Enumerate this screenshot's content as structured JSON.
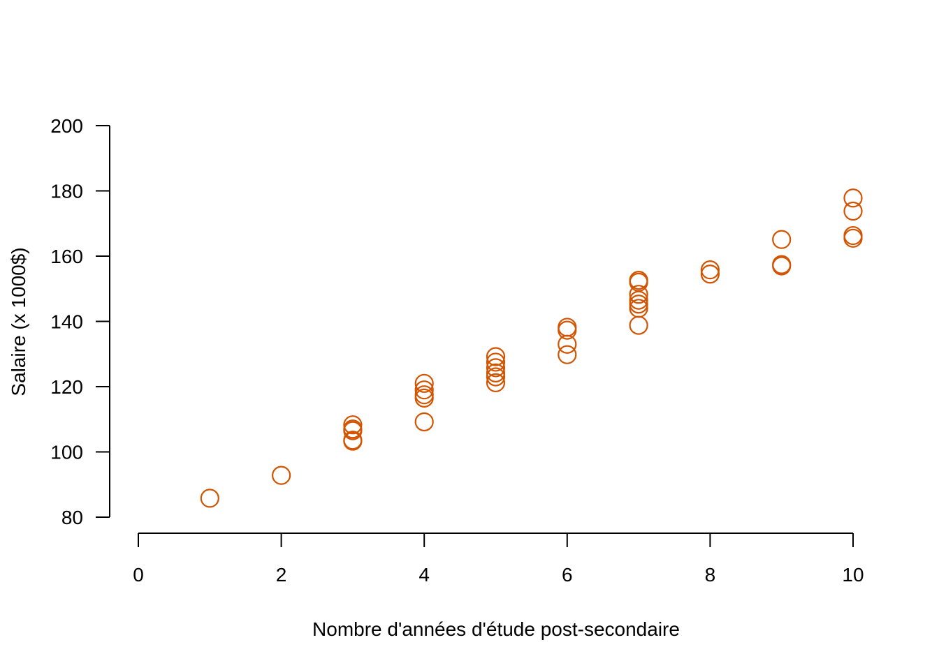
{
  "chart_data": {
    "type": "scatter",
    "xlabel": "Nombre d'années d'étude post-secondaire",
    "ylabel": "Salaire (x 1000$)",
    "xlim": [
      0,
      10
    ],
    "ylim": [
      80,
      200
    ],
    "x_ticks": [
      "0",
      "2",
      "4",
      "6",
      "8",
      "10"
    ],
    "y_ticks": [
      "80",
      "100",
      "120",
      "140",
      "160",
      "180",
      "200"
    ],
    "grid": false,
    "marker": "open-circle",
    "color": "#D35400",
    "points": [
      {
        "x": 1,
        "y": 85.8
      },
      {
        "x": 2,
        "y": 92.8
      },
      {
        "x": 3,
        "y": 103.3
      },
      {
        "x": 3,
        "y": 103.6
      },
      {
        "x": 3,
        "y": 106.5
      },
      {
        "x": 3,
        "y": 107.0
      },
      {
        "x": 3,
        "y": 108.3
      },
      {
        "x": 4,
        "y": 109.2
      },
      {
        "x": 4,
        "y": 116.5
      },
      {
        "x": 4,
        "y": 117.5
      },
      {
        "x": 4,
        "y": 119.0
      },
      {
        "x": 4,
        "y": 121.0
      },
      {
        "x": 5,
        "y": 121.2
      },
      {
        "x": 5,
        "y": 123.0
      },
      {
        "x": 5,
        "y": 124.2
      },
      {
        "x": 5,
        "y": 125.8
      },
      {
        "x": 5,
        "y": 127.5
      },
      {
        "x": 5,
        "y": 129.2
      },
      {
        "x": 6,
        "y": 129.8
      },
      {
        "x": 6,
        "y": 133.0
      },
      {
        "x": 6,
        "y": 137.3
      },
      {
        "x": 6,
        "y": 138.2
      },
      {
        "x": 7,
        "y": 138.8
      },
      {
        "x": 7,
        "y": 144.0
      },
      {
        "x": 7,
        "y": 145.3
      },
      {
        "x": 7,
        "y": 146.5
      },
      {
        "x": 7,
        "y": 148.3
      },
      {
        "x": 7,
        "y": 152.0
      },
      {
        "x": 7,
        "y": 152.6
      },
      {
        "x": 8,
        "y": 154.5
      },
      {
        "x": 8,
        "y": 155.8
      },
      {
        "x": 9,
        "y": 157.0
      },
      {
        "x": 9,
        "y": 157.4
      },
      {
        "x": 9,
        "y": 165.1
      },
      {
        "x": 10,
        "y": 165.5
      },
      {
        "x": 10,
        "y": 166.3
      },
      {
        "x": 10,
        "y": 173.8
      },
      {
        "x": 10,
        "y": 177.8
      }
    ]
  }
}
